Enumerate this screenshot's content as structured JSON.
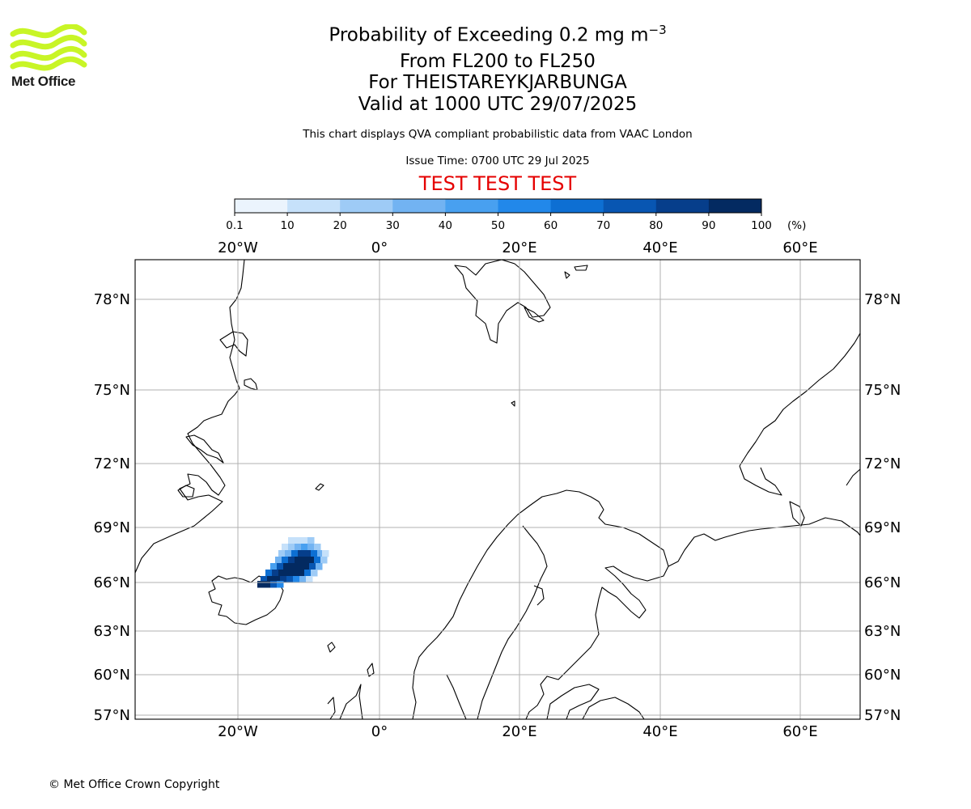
{
  "brand": {
    "name": "Met Office",
    "logo_icon": "met-office-waves-icon",
    "logo_color": "#c8f526"
  },
  "header": {
    "title_main": "Probability of Exceeding 0.2 mg m",
    "title_unit_exp": "−3",
    "level_range": "From FL200 to FL250",
    "volcano": "For THEISTAREYKJARBUNGA",
    "valid_time": "Valid at 1000 UTC 29/07/2025",
    "description": "This chart displays QVA compliant probabilistic data from VAAC London",
    "issue_time": "Issue Time: 0700 UTC 29 Jul 2025",
    "test_banner": "TEST TEST TEST",
    "test_color": "#e50000"
  },
  "colorbar": {
    "ticks": [
      "0.1",
      "10",
      "20",
      "30",
      "40",
      "50",
      "60",
      "70",
      "80",
      "90",
      "100"
    ],
    "unit": "(%)",
    "colors": [
      "#ebf4fd",
      "#c6e1fa",
      "#9ecbf6",
      "#72b3f2",
      "#48a0f0",
      "#2288ea",
      "#0d6fd3",
      "#0856b2",
      "#063e8b",
      "#032a61"
    ]
  },
  "map": {
    "lon_labels": [
      "20°W",
      "0°",
      "20°E",
      "40°E",
      "60°E"
    ],
    "lat_labels": [
      "78°N",
      "75°N",
      "72°N",
      "69°N",
      "66°N",
      "63°N",
      "60°N",
      "57°N"
    ],
    "grid_color": "#b0b0b0",
    "plume": {
      "peak_probability_percent": 100,
      "source": "THEISTAREYKJARBUNGA"
    }
  },
  "footer": {
    "copyright": "© Met Office Crown Copyright"
  }
}
